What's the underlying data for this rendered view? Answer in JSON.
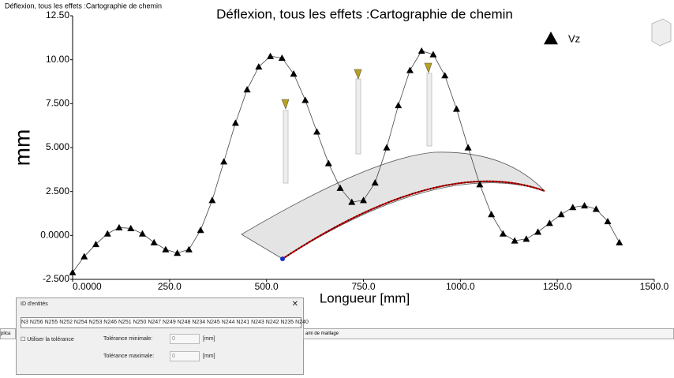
{
  "window_title": "Déflexion, tous les effets :Cartographie de chemin",
  "chart_data": {
    "type": "scatter",
    "title": "Déflexion, tous les effets :Cartographie de chemin",
    "x_label": "Longueur [mm]",
    "y_label": "mm",
    "series": [
      {
        "name": "Vz",
        "color": "#000000",
        "x": [
          0,
          30,
          60,
          90,
          120,
          150,
          180,
          210,
          240,
          270,
          300,
          330,
          360,
          390,
          420,
          450,
          480,
          510,
          540,
          570,
          600,
          630,
          660,
          690,
          720,
          750,
          780,
          810,
          840,
          870,
          900,
          930,
          960,
          990,
          1020,
          1050,
          1080,
          1110,
          1140,
          1170,
          1200,
          1230,
          1260,
          1290,
          1320,
          1350,
          1380,
          1410
        ],
        "values": [
          -2.1,
          -1.2,
          -0.5,
          0.1,
          0.45,
          0.4,
          0.1,
          -0.4,
          -0.8,
          -1.0,
          -0.8,
          0.3,
          2.0,
          4.2,
          6.4,
          8.3,
          9.6,
          10.2,
          10.1,
          9.2,
          7.7,
          5.9,
          4.1,
          2.7,
          1.9,
          2.0,
          3.0,
          5.0,
          7.4,
          9.4,
          10.5,
          10.3,
          9.1,
          7.2,
          5.0,
          2.9,
          1.2,
          0.1,
          -0.3,
          -0.2,
          0.2,
          0.7,
          1.2,
          1.6,
          1.7,
          1.5,
          0.8,
          -0.4
        ]
      }
    ],
    "xlim": [
      0,
      1500
    ],
    "xticks": [
      {
        "value": 0,
        "label": "0.0000"
      },
      {
        "value": 250,
        "label": "250.0"
      },
      {
        "value": 500,
        "label": "500.0"
      },
      {
        "value": 750,
        "label": "750.0"
      },
      {
        "value": 1000,
        "label": "1000.0"
      },
      {
        "value": 1250,
        "label": "1250.0"
      },
      {
        "value": 1500,
        "label": "1500.0"
      }
    ],
    "ylim": [
      -2.5,
      12.5
    ],
    "yticks": [
      {
        "value": -2.5,
        "label": "-2.500"
      },
      {
        "value": 0,
        "label": "0.0000"
      },
      {
        "value": 2.5,
        "label": "2.500"
      },
      {
        "value": 5,
        "label": "5.000"
      },
      {
        "value": 7.5,
        "label": "7.500"
      },
      {
        "value": 10,
        "label": "10.00"
      },
      {
        "value": 12.5,
        "label": "12.50"
      }
    ],
    "legend": "top-right"
  },
  "dialog": {
    "title": "ID d'entités",
    "ids": "N3 N256 N255 N252 N254 N253 N246 N251 N250 N247 N249 N248 N234 N245 N244 N241 N243 N242 N235 N240",
    "use_tolerance": "Utiliser la tolérance",
    "min_label": "Tolérance minimale:",
    "min_value": "0",
    "max_label": "Tolérance maximale:",
    "max_value": "0",
    "unit": "[mm]"
  },
  "tabs": [
    "plica",
    "ami de maillage"
  ]
}
